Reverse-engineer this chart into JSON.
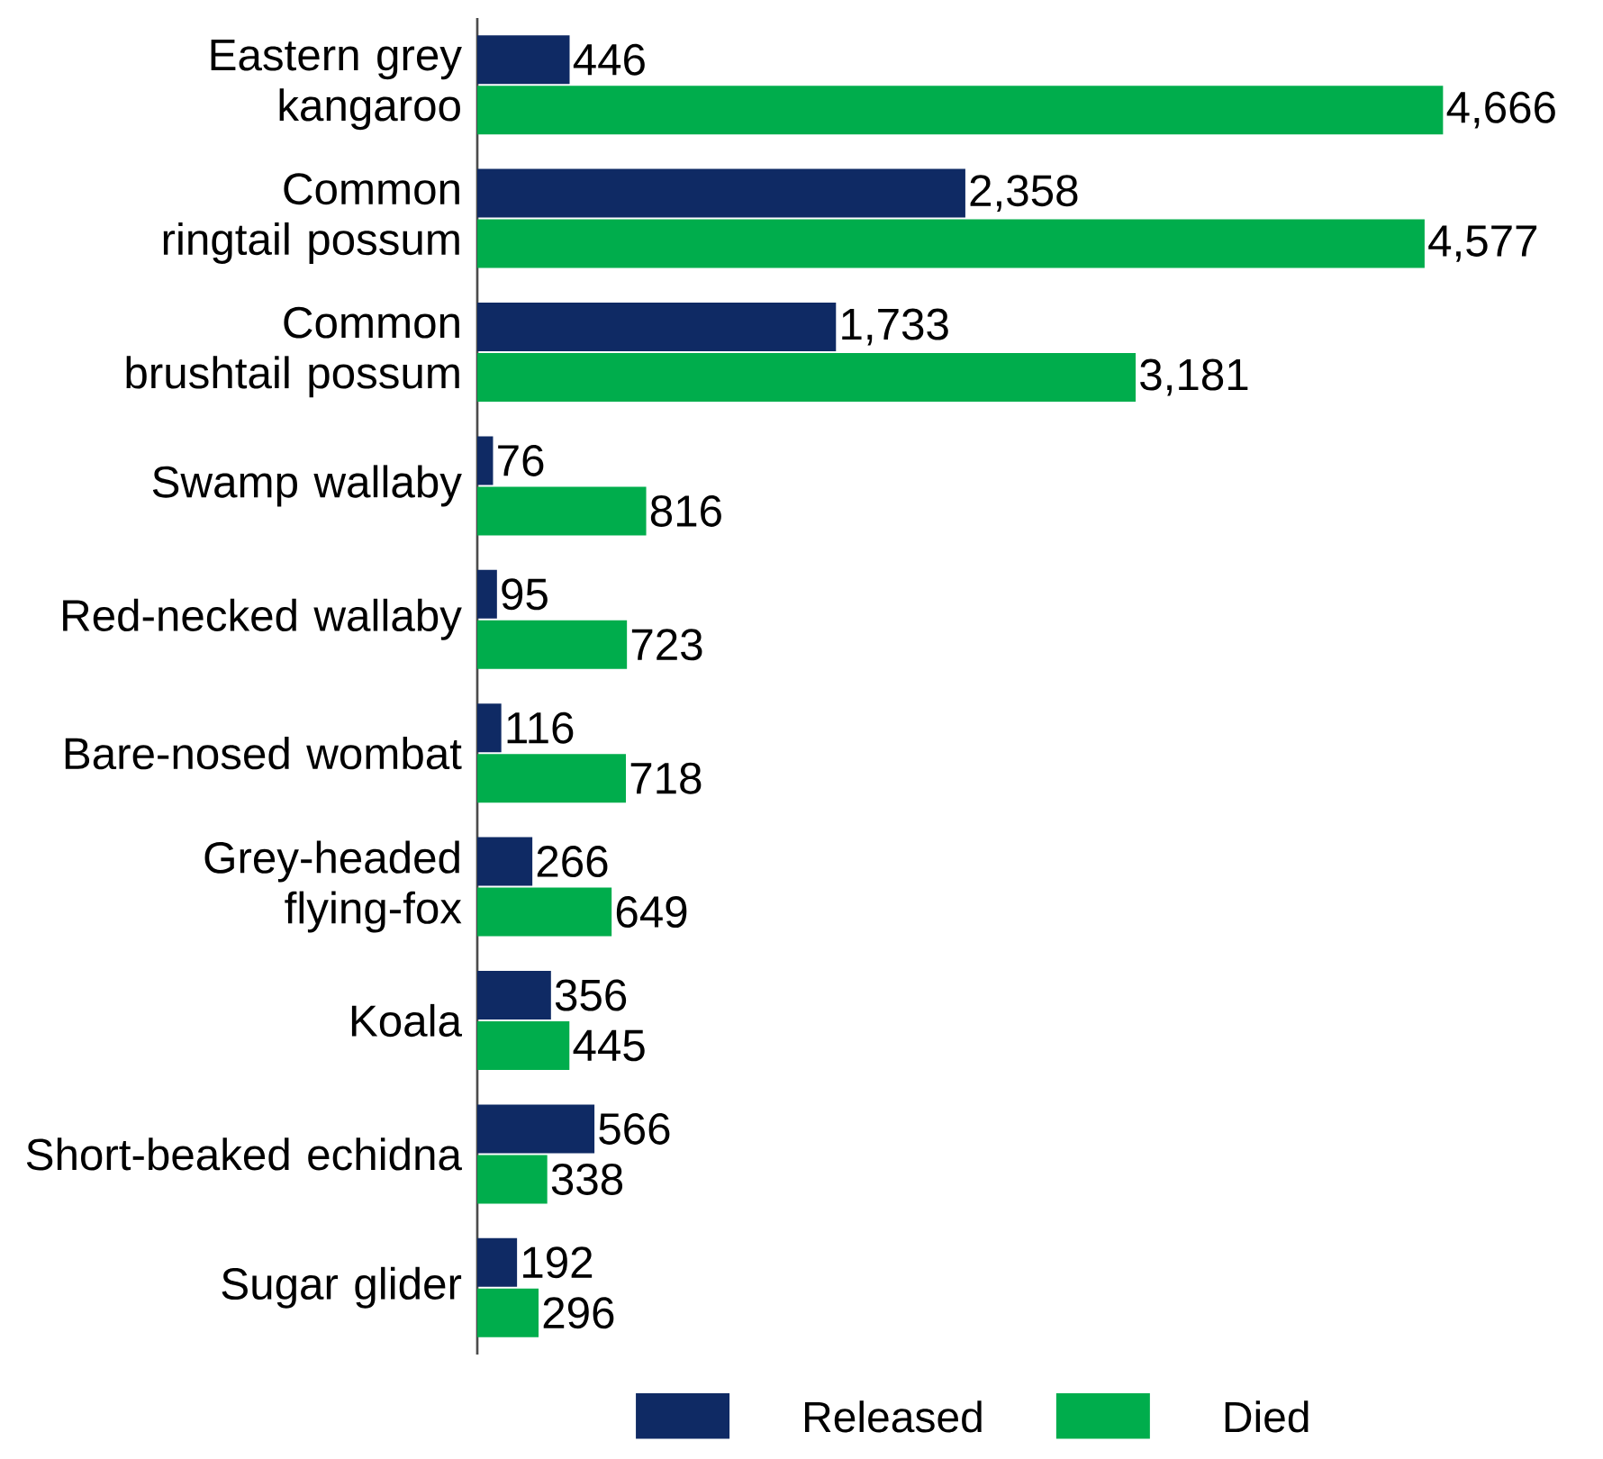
{
  "chart_data": {
    "type": "bar",
    "orientation": "horizontal",
    "legend": "bottom",
    "categories": [
      "Eastern grey kangaroo",
      "Common ringtail possum",
      "Common brushtail possum",
      "Swamp wallaby",
      "Red-necked wallaby",
      "Bare-nosed wombat",
      "Grey-headed flying-fox",
      "Koala",
      "Short-beaked echidna",
      "Sugar glider"
    ],
    "series": [
      {
        "name": "Released",
        "color": "#0f2a64",
        "values": [
          446,
          2358,
          1733,
          76,
          95,
          116,
          266,
          356,
          566,
          192
        ],
        "value_labels": [
          "446",
          "2,358",
          "1,733",
          "76",
          "95",
          "116",
          "266",
          "356",
          "566",
          "192"
        ]
      },
      {
        "name": "Died",
        "color": "#00ad4c",
        "values": [
          4666,
          4577,
          3181,
          816,
          723,
          718,
          649,
          445,
          338,
          296
        ],
        "value_labels": [
          "4,666",
          "4,577",
          "3,181",
          "816",
          "723",
          "718",
          "649",
          "445",
          "338",
          "296"
        ]
      }
    ]
  }
}
